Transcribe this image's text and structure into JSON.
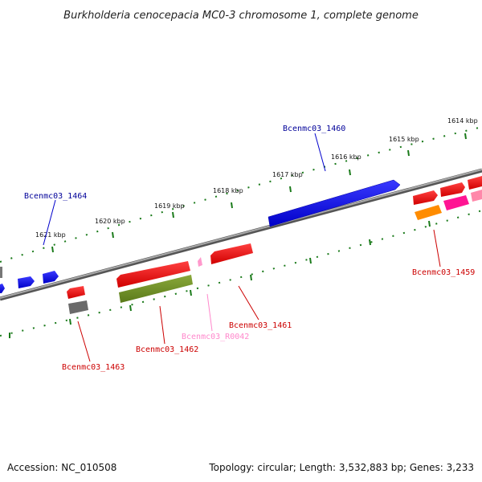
{
  "title": "Burkholderia cenocepacia MC0-3 chromosome 1, complete genome",
  "footer": {
    "accession": "Accession: NC_010508",
    "summary": "Topology: circular; Length: 3,532,883 bp; Genes: 3,233"
  },
  "scale_labels": [
    "1614 kbp",
    "1615 kbp",
    "1616 kbp",
    "1617 kbp",
    "1618 kbp",
    "1619 kbp",
    "1620 kbp",
    "1621 kbp"
  ],
  "gene_labels": {
    "bcenmc03_1460": "Bcenmc03_1460",
    "bcenmc03_1464": "Bcenmc03_1464",
    "bcenmc03_1459": "Bcenmc03_1459",
    "bcenmc03_1461": "Bcenmc03_1461",
    "bcenmc03_r0042": "Bcenmc03_R0042",
    "bcenmc03_1462": "Bcenmc03_1462",
    "bcenmc03_1463": "Bcenmc03_1463"
  },
  "colors": {
    "forward_cds": "#0000ee",
    "reverse_cds": "#ee0000",
    "rna": "#ff88cc",
    "misc": "#6b8e23",
    "pseudo": "#666666",
    "orange": "#ff8c00",
    "magenta": "#ff00aa",
    "tick": "#1a7a1a",
    "backbone": "#888888"
  }
}
